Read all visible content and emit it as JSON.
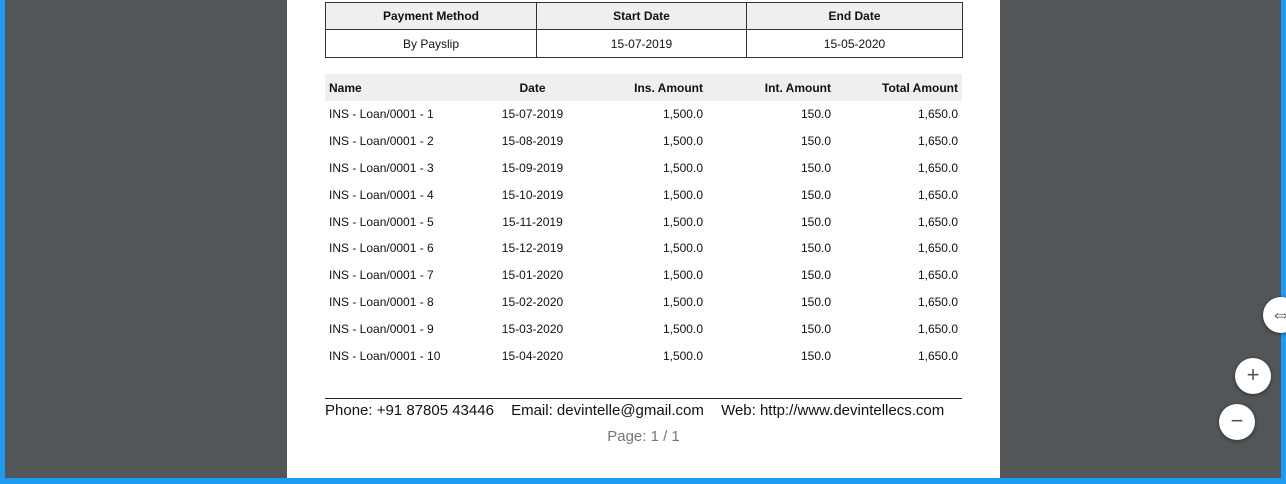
{
  "payment_table": {
    "headers": [
      "Payment Method",
      "Start Date",
      "End Date"
    ],
    "row": [
      "By Payslip",
      "15-07-2019",
      "15-05-2020"
    ]
  },
  "installments": {
    "headers": [
      "Name",
      "Date",
      "Ins. Amount",
      "Int. Amount",
      "Total Amount"
    ],
    "rows": [
      [
        "INS - Loan/0001 - 1",
        "15-07-2019",
        "1,500.0",
        "150.0",
        "1,650.0"
      ],
      [
        "INS - Loan/0001 - 2",
        "15-08-2019",
        "1,500.0",
        "150.0",
        "1,650.0"
      ],
      [
        "INS - Loan/0001 - 3",
        "15-09-2019",
        "1,500.0",
        "150.0",
        "1,650.0"
      ],
      [
        "INS - Loan/0001 - 4",
        "15-10-2019",
        "1,500.0",
        "150.0",
        "1,650.0"
      ],
      [
        "INS - Loan/0001 - 5",
        "15-11-2019",
        "1,500.0",
        "150.0",
        "1,650.0"
      ],
      [
        "INS - Loan/0001 - 6",
        "15-12-2019",
        "1,500.0",
        "150.0",
        "1,650.0"
      ],
      [
        "INS - Loan/0001 - 7",
        "15-01-2020",
        "1,500.0",
        "150.0",
        "1,650.0"
      ],
      [
        "INS - Loan/0001 - 8",
        "15-02-2020",
        "1,500.0",
        "150.0",
        "1,650.0"
      ],
      [
        "INS - Loan/0001 - 9",
        "15-03-2020",
        "1,500.0",
        "150.0",
        "1,650.0"
      ],
      [
        "INS - Loan/0001 - 10",
        "15-04-2020",
        "1,500.0",
        "150.0",
        "1,650.0"
      ]
    ]
  },
  "footer": {
    "phone": "Phone: +91 87805 43446",
    "email": "Email: devintelle@gmail.com",
    "web": "Web: http://www.devintellecs.com",
    "page": "Page: 1 / 1"
  },
  "zoom": {
    "fit_icon": "fit-page-icon",
    "plus_label": "+",
    "minus_label": "−"
  },
  "colors": {
    "viewer_bg": "#525659",
    "frame_accent": "#1e9af0",
    "header_bg": "#eeeff0"
  }
}
